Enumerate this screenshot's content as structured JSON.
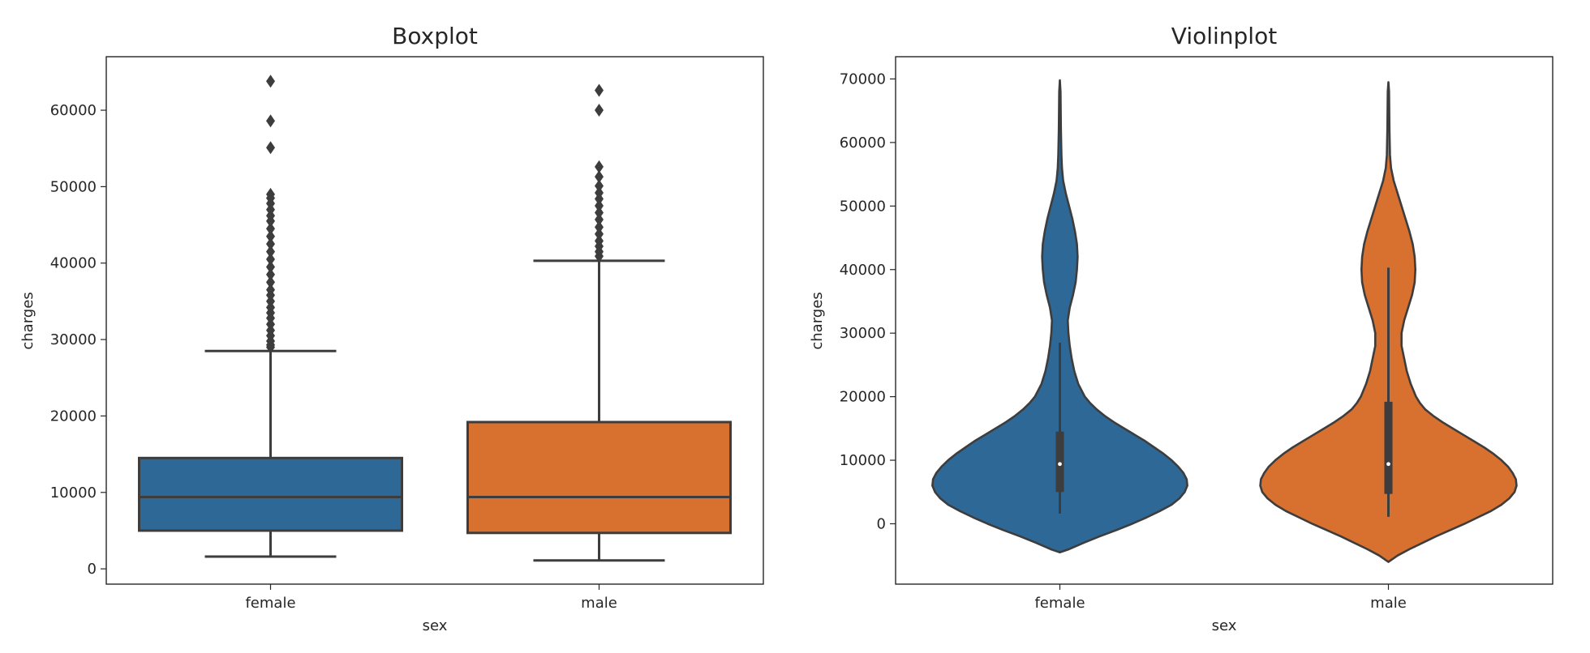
{
  "chart_data": [
    {
      "type": "box",
      "title": "Boxplot",
      "xlabel": "sex",
      "ylabel": "charges",
      "categories": [
        "female",
        "male"
      ],
      "colors": [
        "#2e6896",
        "#d8702f"
      ],
      "ylim": [
        -2000,
        67000
      ],
      "yticks": [
        0,
        10000,
        20000,
        30000,
        40000,
        50000,
        60000
      ],
      "ytick_labels": [
        "0",
        "10000",
        "20000",
        "30000",
        "40000",
        "50000",
        "60000"
      ],
      "boxes": [
        {
          "category": "female",
          "whisker_low": 1600,
          "q1": 5000,
          "median": 9400,
          "q3": 14500,
          "whisker_high": 28500,
          "outliers": [
            29000,
            29300,
            29800,
            30500,
            31200,
            32000,
            32800,
            33500,
            34200,
            35000,
            35800,
            36500,
            37500,
            38500,
            39500,
            40500,
            41500,
            42500,
            43500,
            44500,
            45500,
            46200,
            47000,
            47800,
            48500,
            49000,
            55100,
            58600,
            63800
          ]
        },
        {
          "category": "male",
          "whisker_low": 1100,
          "q1": 4700,
          "median": 9400,
          "q3": 19200,
          "whisker_high": 40300,
          "outliers": [
            40900,
            41500,
            42200,
            42900,
            43800,
            44700,
            45700,
            46600,
            47500,
            48400,
            49200,
            50100,
            51300,
            52600,
            60000,
            62600
          ]
        }
      ],
      "grid": false
    },
    {
      "type": "violin",
      "title": "Violinplot",
      "xlabel": "sex",
      "ylabel": "charges",
      "categories": [
        "female",
        "male"
      ],
      "colors": [
        "#2e6896",
        "#d8702f"
      ],
      "ylim": [
        -9500,
        73500
      ],
      "yticks": [
        0,
        10000,
        20000,
        30000,
        40000,
        50000,
        60000,
        70000
      ],
      "ytick_labels": [
        "0",
        "10000",
        "20000",
        "30000",
        "40000",
        "50000",
        "60000",
        "70000"
      ],
      "violins": [
        {
          "category": "female",
          "profile": [
            [
              -4500,
              0.0
            ],
            [
              -4000,
              0.07
            ],
            [
              -3000,
              0.18
            ],
            [
              -2000,
              0.3
            ],
            [
              -1000,
              0.43
            ],
            [
              0,
              0.55
            ],
            [
              1000,
              0.66
            ],
            [
              2000,
              0.76
            ],
            [
              3000,
              0.85
            ],
            [
              4000,
              0.91
            ],
            [
              5000,
              0.95
            ],
            [
              6000,
              0.97
            ],
            [
              7000,
              0.965
            ],
            [
              8000,
              0.94
            ],
            [
              9000,
              0.9
            ],
            [
              10000,
              0.85
            ],
            [
              11000,
              0.79
            ],
            [
              12000,
              0.72
            ],
            [
              13000,
              0.65
            ],
            [
              14000,
              0.57
            ],
            [
              15000,
              0.49
            ],
            [
              16000,
              0.41
            ],
            [
              17000,
              0.34
            ],
            [
              18000,
              0.28
            ],
            [
              19000,
              0.23
            ],
            [
              20000,
              0.19
            ],
            [
              22000,
              0.14
            ],
            [
              24000,
              0.11
            ],
            [
              26000,
              0.09
            ],
            [
              28000,
              0.075
            ],
            [
              30000,
              0.065
            ],
            [
              32000,
              0.06
            ],
            [
              34000,
              0.075
            ],
            [
              36000,
              0.1
            ],
            [
              38000,
              0.12
            ],
            [
              40000,
              0.13
            ],
            [
              42000,
              0.135
            ],
            [
              44000,
              0.13
            ],
            [
              46000,
              0.115
            ],
            [
              48000,
              0.095
            ],
            [
              50000,
              0.07
            ],
            [
              52000,
              0.045
            ],
            [
              54000,
              0.025
            ],
            [
              56000,
              0.016
            ],
            [
              58000,
              0.012
            ],
            [
              60000,
              0.01
            ],
            [
              62000,
              0.008
            ],
            [
              64000,
              0.007
            ],
            [
              66000,
              0.006
            ],
            [
              68000,
              0.005
            ],
            [
              69800,
              0.0
            ]
          ],
          "whisker_low": 1600,
          "q1": 5000,
          "median": 9400,
          "q3": 14500,
          "whisker_high": 28500
        },
        {
          "category": "male",
          "profile": [
            [
              -6000,
              0.0
            ],
            [
              -5000,
              0.07
            ],
            [
              -4000,
              0.16
            ],
            [
              -3000,
              0.26
            ],
            [
              -2000,
              0.36
            ],
            [
              -1000,
              0.47
            ],
            [
              0,
              0.58
            ],
            [
              1000,
              0.68
            ],
            [
              2000,
              0.78
            ],
            [
              3000,
              0.86
            ],
            [
              4000,
              0.92
            ],
            [
              5000,
              0.96
            ],
            [
              6000,
              0.975
            ],
            [
              7000,
              0.97
            ],
            [
              8000,
              0.945
            ],
            [
              9000,
              0.91
            ],
            [
              10000,
              0.86
            ],
            [
              11000,
              0.8
            ],
            [
              12000,
              0.73
            ],
            [
              13000,
              0.65
            ],
            [
              14000,
              0.57
            ],
            [
              15000,
              0.49
            ],
            [
              16000,
              0.41
            ],
            [
              17000,
              0.34
            ],
            [
              18000,
              0.28
            ],
            [
              19000,
              0.24
            ],
            [
              20000,
              0.21
            ],
            [
              22000,
              0.17
            ],
            [
              24000,
              0.14
            ],
            [
              26000,
              0.12
            ],
            [
              28000,
              0.1
            ],
            [
              30000,
              0.1
            ],
            [
              32000,
              0.12
            ],
            [
              34000,
              0.15
            ],
            [
              36000,
              0.18
            ],
            [
              38000,
              0.2
            ],
            [
              40000,
              0.205
            ],
            [
              42000,
              0.2
            ],
            [
              44000,
              0.185
            ],
            [
              46000,
              0.16
            ],
            [
              48000,
              0.13
            ],
            [
              50000,
              0.1
            ],
            [
              52000,
              0.07
            ],
            [
              54000,
              0.04
            ],
            [
              56000,
              0.02
            ],
            [
              58000,
              0.012
            ],
            [
              60000,
              0.01
            ],
            [
              62000,
              0.008
            ],
            [
              64000,
              0.007
            ],
            [
              66000,
              0.006
            ],
            [
              68000,
              0.005
            ],
            [
              69500,
              0.0
            ]
          ],
          "whisker_low": 1100,
          "q1": 4700,
          "median": 9400,
          "q3": 19200,
          "whisker_high": 40300
        }
      ],
      "grid": false
    }
  ]
}
